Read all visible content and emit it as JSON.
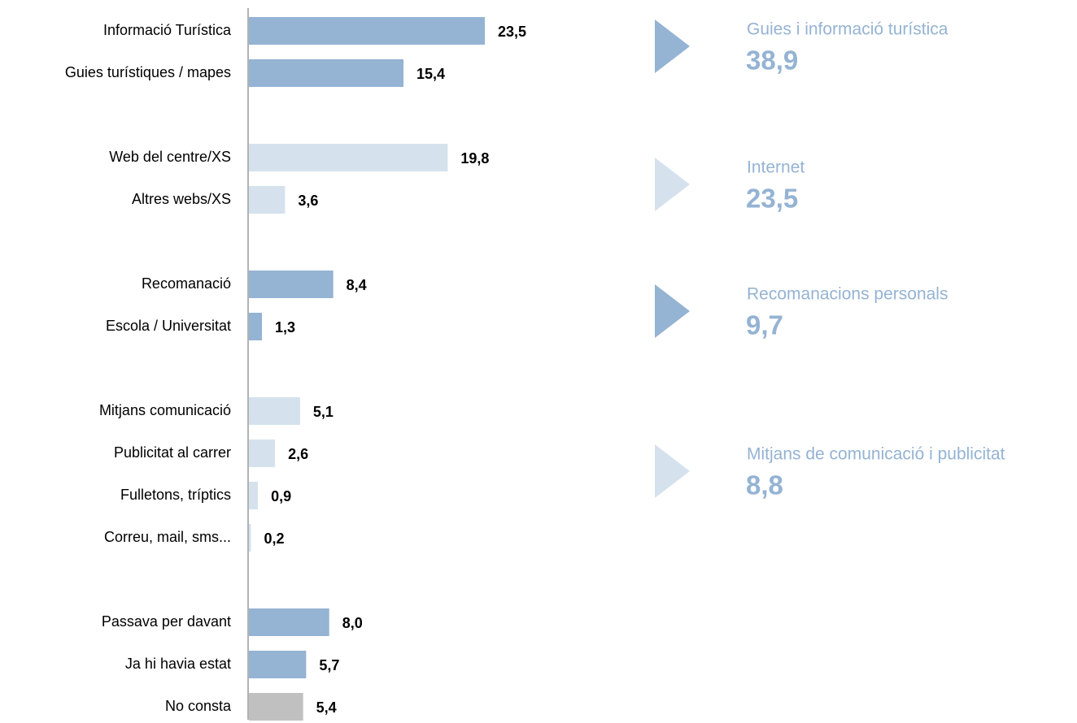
{
  "chart_data": {
    "type": "bar",
    "orientation": "horizontal",
    "categories": [
      "Informació Turística",
      "Guies turístiques / mapes",
      "Web del centre/XS",
      "Altres webs/XS",
      "Recomanació",
      "Escola / Universitat",
      "Mitjans comunicació",
      "Publicitat al carrer",
      "Fulletons, tríptics",
      "Correu, mail, sms...",
      "Passava per davant",
      "Ja hi havia estat",
      "No consta"
    ],
    "values": [
      23.5,
      15.4,
      19.8,
      3.6,
      8.4,
      1.3,
      5.1,
      2.6,
      0.9,
      0.2,
      8.0,
      5.7,
      5.4
    ],
    "value_labels": [
      "23,5",
      "15,4",
      "19,8",
      "3,6",
      "8,4",
      "1,3",
      "5,1",
      "2,6",
      "0,9",
      "0,2",
      "8,0",
      "5,7",
      "5,4"
    ],
    "colors": [
      "#95b3d3",
      "#95b3d3",
      "#d5e2ee",
      "#d5e2ee",
      "#95b3d3",
      "#95b3d3",
      "#d5e2ee",
      "#d5e2ee",
      "#d5e2ee",
      "#d5e2ee",
      "#95b3d3",
      "#95b3d3",
      "#c0c0c0"
    ],
    "summaries": [
      {
        "label": "Guies i informació turística",
        "value": 38.9,
        "value_label": "38,9",
        "color": "#95b3d3"
      },
      {
        "label": "Internet",
        "value": 23.5,
        "value_label": "23,5",
        "color": "#d5e2ee"
      },
      {
        "label": "Recomanacions personals",
        "value": 9.7,
        "value_label": "9,7",
        "color": "#95b3d3"
      },
      {
        "label": "Mitjans de comunicació i publicitat",
        "value": 8.8,
        "value_label": "8,8",
        "color": "#d5e2ee"
      }
    ]
  }
}
